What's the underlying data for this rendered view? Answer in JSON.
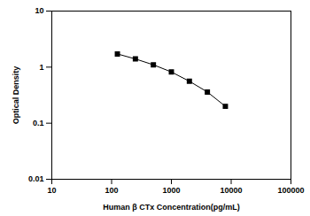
{
  "chart_data": {
    "type": "line",
    "x_label": "Human β CTx Concentration(pg/mL)",
    "y_label": "Optical Density",
    "x": [
      125,
      250,
      500,
      1000,
      2000,
      4000,
      8000
    ],
    "values": [
      1.72,
      1.4,
      1.1,
      0.82,
      0.56,
      0.36,
      0.2
    ],
    "color": "#000000",
    "marker": "square",
    "line_style": "solid",
    "log": true,
    "grid": false,
    "xlim": [
      10,
      100000
    ],
    "xticks": [
      10,
      100,
      1000,
      10000,
      100000
    ],
    "ylim": [
      0.01,
      10
    ],
    "yticks": [
      0.01,
      0.1,
      1,
      10
    ]
  }
}
